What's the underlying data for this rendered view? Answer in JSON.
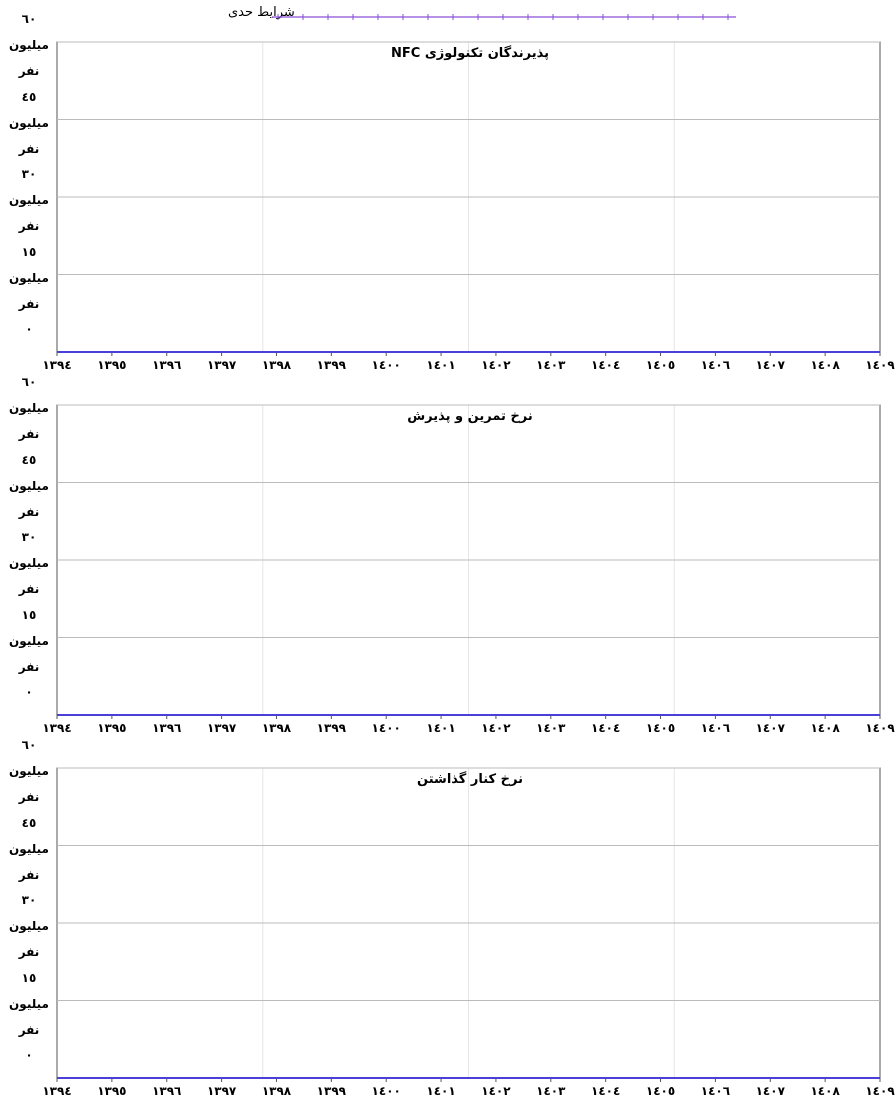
{
  "chart_data": [
    {
      "type": "line",
      "title": "پذیرندگان تکنولوژی NFC",
      "x": [
        1394,
        1395,
        1396,
        1397,
        1398,
        1399,
        1400,
        1401,
        1402,
        1403,
        1404,
        1405,
        1406,
        1407,
        1408,
        1409
      ],
      "series": [
        {
          "name": "شرایط حدی",
          "color": "#4a3fd6",
          "values": [
            0,
            0,
            0,
            0,
            0,
            0,
            0,
            0,
            0,
            0,
            0,
            0,
            0,
            0,
            0,
            0
          ]
        }
      ],
      "xlim": [
        1394,
        1409
      ],
      "xticks": [
        {
          "value": 1394,
          "label": "١٣٩٤"
        },
        {
          "value": 1395,
          "label": "١٣٩٥"
        },
        {
          "value": 1396,
          "label": "١٣٩٦"
        },
        {
          "value": 1397,
          "label": "١٣٩٧"
        },
        {
          "value": 1398,
          "label": "١٣٩٨"
        },
        {
          "value": 1399,
          "label": "١٣٩٩"
        },
        {
          "value": 1400,
          "label": "١٤٠٠"
        },
        {
          "value": 1401,
          "label": "١٤٠١"
        },
        {
          "value": 1402,
          "label": "١٤٠٢"
        },
        {
          "value": 1403,
          "label": "١٤٠٣"
        },
        {
          "value": 1404,
          "label": "١٤٠٤"
        },
        {
          "value": 1405,
          "label": "١٤٠٥"
        },
        {
          "value": 1406,
          "label": "١٤٠٦"
        },
        {
          "value": 1407,
          "label": "١٤٠٧"
        },
        {
          "value": 1408,
          "label": "١٤٠٨"
        },
        {
          "value": 1409,
          "label": "١٤٠٩"
        }
      ],
      "ylim": [
        0,
        60
      ],
      "yticks": [
        {
          "value": 0,
          "label": "٠"
        },
        {
          "value": 15,
          "label": "١٥ میلیون نفر"
        },
        {
          "value": 30,
          "label": "٣٠ میلیون نفر"
        },
        {
          "value": 45,
          "label": "٤٥ میلیون نفر"
        },
        {
          "value": 60,
          "label": "٦٠ میلیون نفر"
        }
      ],
      "grid": true
    },
    {
      "type": "line",
      "title": "نرخ تمرین و پذیرش",
      "x": [
        1394,
        1395,
        1396,
        1397,
        1398,
        1399,
        1400,
        1401,
        1402,
        1403,
        1404,
        1405,
        1406,
        1407,
        1408,
        1409
      ],
      "series": [
        {
          "color": "#4a3fd6",
          "values": [
            0,
            0,
            0,
            0,
            0,
            0,
            0,
            0,
            0,
            0,
            0,
            0,
            0,
            0,
            0,
            0
          ]
        }
      ],
      "xlim": [
        1394,
        1409
      ],
      "xticks": [
        {
          "value": 1394,
          "label": "١٣٩٤"
        },
        {
          "value": 1395,
          "label": "١٣٩٥"
        },
        {
          "value": 1396,
          "label": "١٣٩٦"
        },
        {
          "value": 1397,
          "label": "١٣٩٧"
        },
        {
          "value": 1398,
          "label": "١٣٩٨"
        },
        {
          "value": 1399,
          "label": "١٣٩٩"
        },
        {
          "value": 1400,
          "label": "١٤٠٠"
        },
        {
          "value": 1401,
          "label": "١٤٠١"
        },
        {
          "value": 1402,
          "label": "١٤٠٢"
        },
        {
          "value": 1403,
          "label": "١٤٠٣"
        },
        {
          "value": 1404,
          "label": "١٤٠٤"
        },
        {
          "value": 1405,
          "label": "١٤٠٥"
        },
        {
          "value": 1406,
          "label": "١٤٠٦"
        },
        {
          "value": 1407,
          "label": "١٤٠٧"
        },
        {
          "value": 1408,
          "label": "١٤٠٨"
        },
        {
          "value": 1409,
          "label": "١٤٠٩"
        }
      ],
      "ylim": [
        0,
        60
      ],
      "yticks": [
        {
          "value": 0,
          "label": "٠"
        },
        {
          "value": 15,
          "label": "١٥ میلیون نفر"
        },
        {
          "value": 30,
          "label": "٣٠ میلیون نفر"
        },
        {
          "value": 45,
          "label": "٤٥ میلیون نفر"
        },
        {
          "value": 60,
          "label": "٦٠ میلیون نفر"
        }
      ],
      "grid": true
    },
    {
      "type": "line",
      "title": "نرخ کنار گذاشتن",
      "x": [
        1394,
        1395,
        1396,
        1397,
        1398,
        1399,
        1400,
        1401,
        1402,
        1403,
        1404,
        1405,
        1406,
        1407,
        1408,
        1409
      ],
      "series": [
        {
          "color": "#4a3fd6",
          "values": [
            0,
            0,
            0,
            0,
            0,
            0,
            0,
            0,
            0,
            0,
            0,
            0,
            0,
            0,
            0,
            0
          ]
        }
      ],
      "xlim": [
        1394,
        1409
      ],
      "xticks": [
        {
          "value": 1394,
          "label": "١٣٩٤"
        },
        {
          "value": 1395,
          "label": "١٣٩٥"
        },
        {
          "value": 1396,
          "label": "١٣٩٦"
        },
        {
          "value": 1397,
          "label": "١٣٩٧"
        },
        {
          "value": 1398,
          "label": "١٣٩٨"
        },
        {
          "value": 1399,
          "label": "١٣٩٩"
        },
        {
          "value": 1400,
          "label": "١٤٠٠"
        },
        {
          "value": 1401,
          "label": "١٤٠١"
        },
        {
          "value": 1402,
          "label": "١٤٠٢"
        },
        {
          "value": 1403,
          "label": "١٤٠٣"
        },
        {
          "value": 1404,
          "label": "١٤٠٤"
        },
        {
          "value": 1405,
          "label": "١٤٠٥"
        },
        {
          "value": 1406,
          "label": "١٤٠٦"
        },
        {
          "value": 1407,
          "label": "١٤٠٧"
        },
        {
          "value": 1408,
          "label": "١٤٠٨"
        },
        {
          "value": 1409,
          "label": "١٤٠٩"
        }
      ],
      "ylim": [
        0,
        60
      ],
      "yticks": [
        {
          "value": 0,
          "label": "٠"
        },
        {
          "value": 15,
          "label": "١٥ میلیون نفر"
        },
        {
          "value": 30,
          "label": "٣٠ میلیون نفر"
        },
        {
          "value": 45,
          "label": "٤٥ میلیون نفر"
        },
        {
          "value": 60,
          "label": "٦٠ میلیون نفر"
        }
      ],
      "grid": true
    }
  ]
}
